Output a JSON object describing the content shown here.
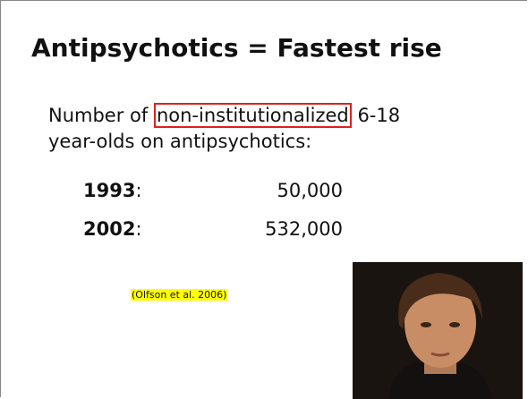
{
  "slide": {
    "title": "Antipsychotics = Fastest rise",
    "intro": {
      "before": "Number of",
      "highlight": "non-institutionalized",
      "after": "6-18 year-olds on antipsychotics:"
    },
    "rows": [
      {
        "year": "1993",
        "separator": ":",
        "value": "50,000"
      },
      {
        "year": "2002",
        "separator": ":",
        "value": "532,000"
      }
    ],
    "citation": "(Olfson et al. 2006)"
  }
}
